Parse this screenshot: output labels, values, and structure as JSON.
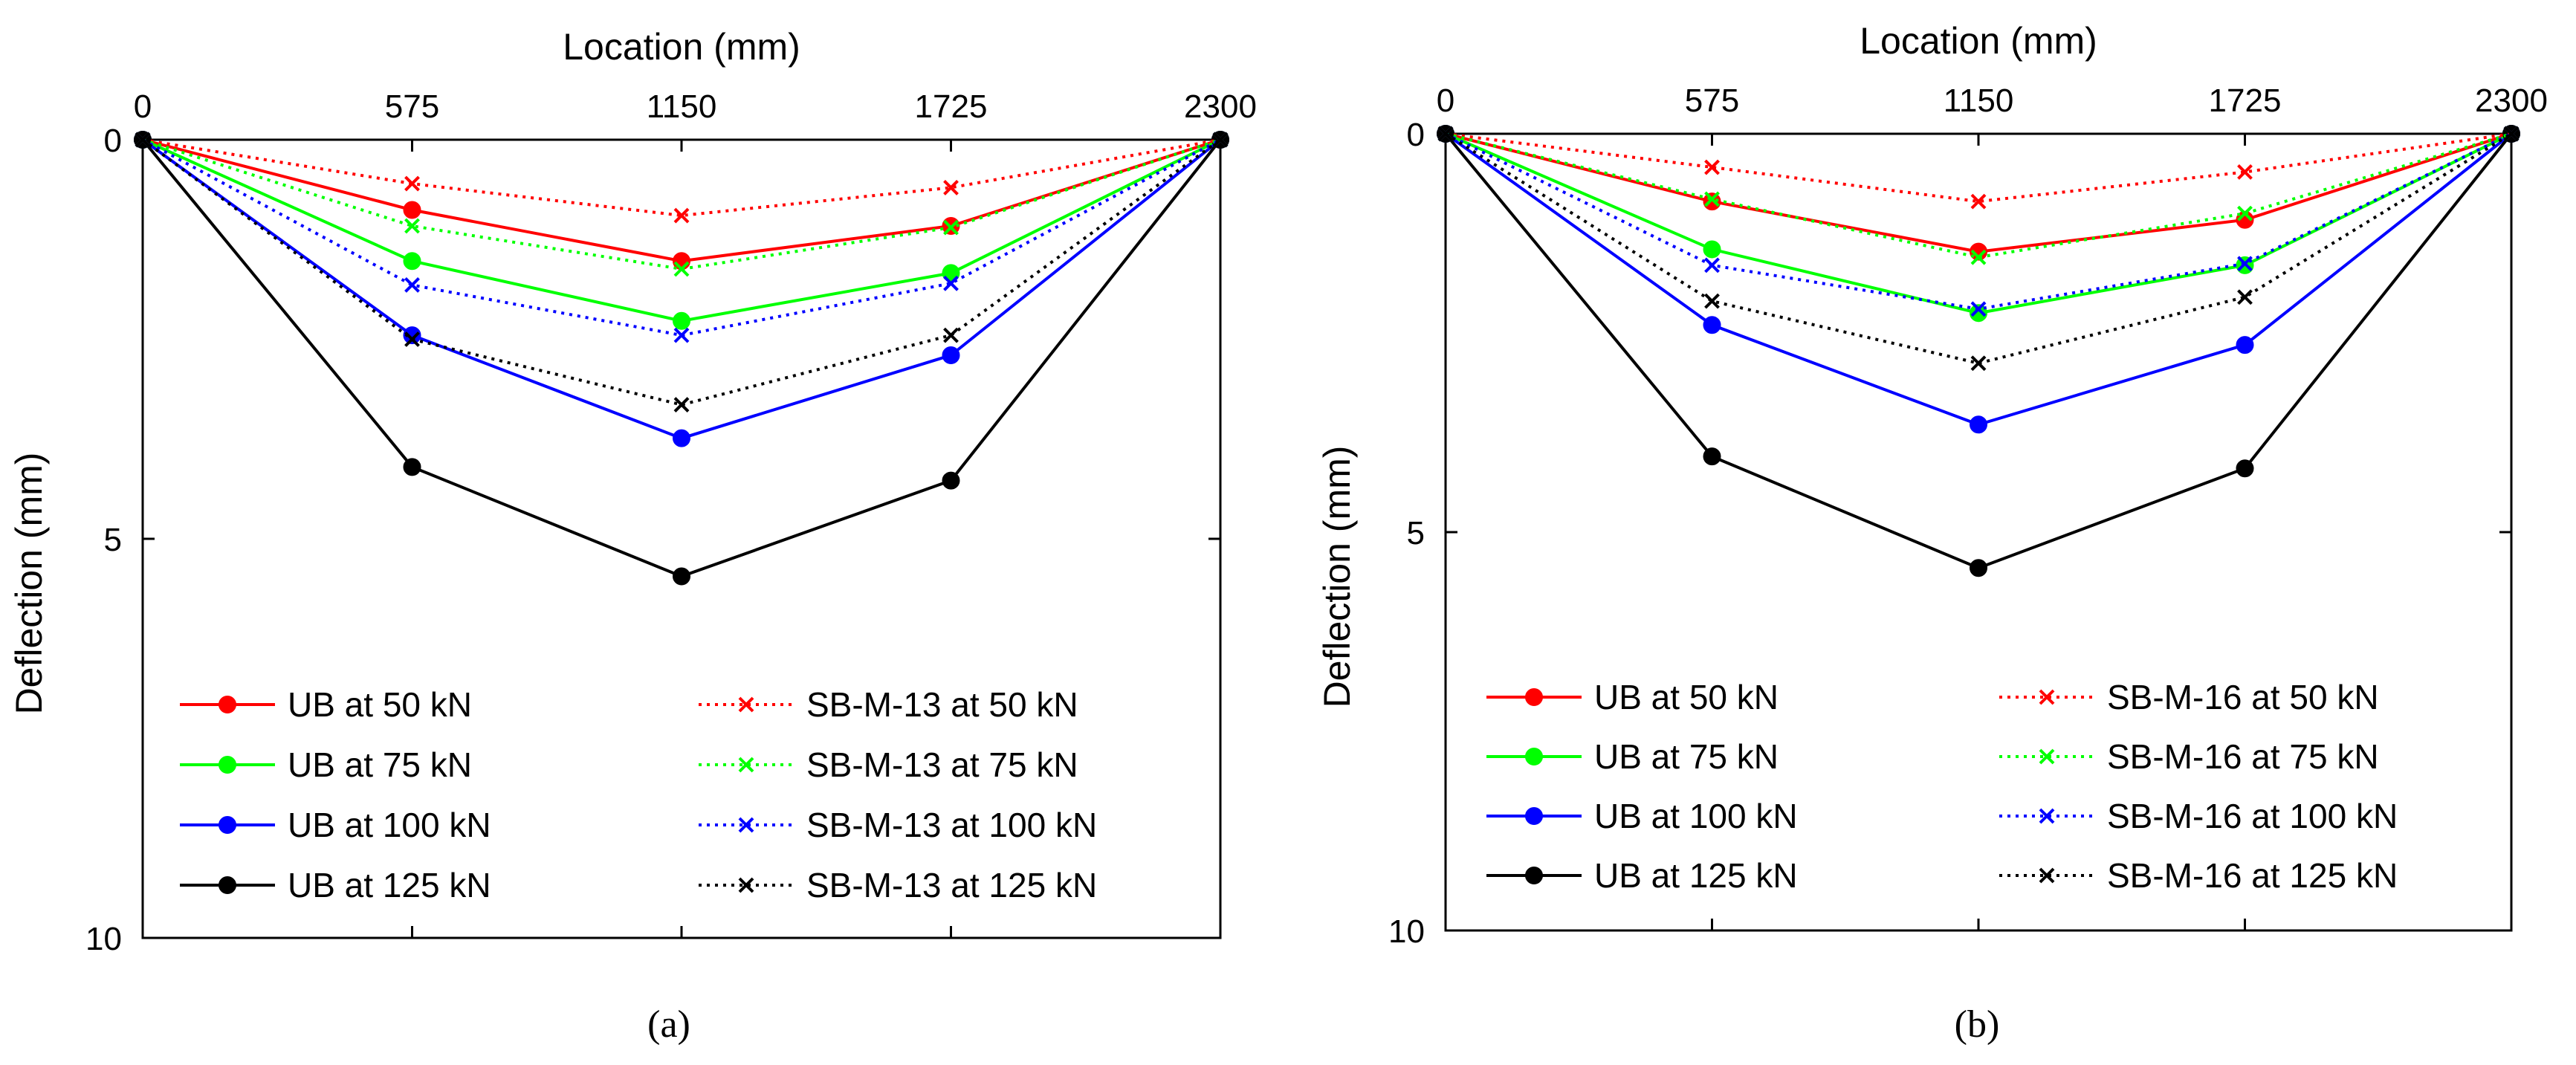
{
  "chart_data": [
    {
      "type": "line",
      "panel_label": "a",
      "title": "",
      "xlabel": "Location (mm)",
      "ylabel": "Deflection (mm)",
      "x_axis_position": "top",
      "y_axis_direction": "reversed",
      "xlim": [
        0,
        2300
      ],
      "ylim": [
        0,
        10
      ],
      "xticks": [
        0,
        575,
        1150,
        1725,
        2300
      ],
      "yticks": [
        0,
        5,
        10
      ],
      "grid": false,
      "legend_position": "bottom",
      "x": [
        0,
        575,
        1150,
        1725,
        2300
      ],
      "series": [
        {
          "name": "UB at 50 kN",
          "color": "#ff0000",
          "style": "solid",
          "marker": "dot",
          "values": [
            0,
            0.88,
            1.52,
            1.08,
            0
          ]
        },
        {
          "name": "UB at 75 kN",
          "color": "#00ff00",
          "style": "solid",
          "marker": "dot",
          "values": [
            0,
            1.52,
            2.27,
            1.67,
            0
          ]
        },
        {
          "name": "UB at 100 kN",
          "color": "#0000ff",
          "style": "solid",
          "marker": "dot",
          "values": [
            0,
            2.45,
            3.74,
            2.7,
            0
          ]
        },
        {
          "name": "UB at 125 kN",
          "color": "#000000",
          "style": "solid",
          "marker": "dot",
          "values": [
            0,
            4.1,
            5.47,
            4.27,
            0
          ]
        },
        {
          "name": "SB-M-13 at 50 kN",
          "color": "#ff0000",
          "style": "dotted",
          "marker": "x",
          "values": [
            0,
            0.55,
            0.95,
            0.6,
            0
          ]
        },
        {
          "name": "SB-M-13 at 75 kN",
          "color": "#00ff00",
          "style": "dotted",
          "marker": "x",
          "values": [
            0,
            1.08,
            1.62,
            1.1,
            0
          ]
        },
        {
          "name": "SB-M-13 at 100 kN",
          "color": "#0000ff",
          "style": "dotted",
          "marker": "x",
          "values": [
            0,
            1.82,
            2.45,
            1.8,
            0
          ]
        },
        {
          "name": "SB-M-13 at 125 kN",
          "color": "#000000",
          "style": "dotted",
          "marker": "x",
          "values": [
            0,
            2.5,
            3.32,
            2.45,
            0
          ]
        }
      ]
    },
    {
      "type": "line",
      "panel_label": "b",
      "title": "",
      "xlabel": "Location (mm)",
      "ylabel": "Deflection (mm)",
      "x_axis_position": "top",
      "y_axis_direction": "reversed",
      "xlim": [
        0,
        2300
      ],
      "ylim": [
        0,
        10
      ],
      "xticks": [
        0,
        575,
        1150,
        1725,
        2300
      ],
      "yticks": [
        0,
        5,
        10
      ],
      "grid": false,
      "legend_position": "bottom",
      "x": [
        0,
        575,
        1150,
        1725,
        2300
      ],
      "series": [
        {
          "name": "UB at 50 kN",
          "color": "#ff0000",
          "style": "solid",
          "marker": "dot",
          "values": [
            0,
            0.85,
            1.48,
            1.08,
            0
          ]
        },
        {
          "name": "UB at 75 kN",
          "color": "#00ff00",
          "style": "solid",
          "marker": "dot",
          "values": [
            0,
            1.45,
            2.25,
            1.65,
            0
          ]
        },
        {
          "name": "UB at 100 kN",
          "color": "#0000ff",
          "style": "solid",
          "marker": "dot",
          "values": [
            0,
            2.4,
            3.65,
            2.65,
            0
          ]
        },
        {
          "name": "UB at 125 kN",
          "color": "#000000",
          "style": "solid",
          "marker": "dot",
          "values": [
            0,
            4.05,
            5.45,
            4.2,
            0
          ]
        },
        {
          "name": "SB-M-16 at 50 kN",
          "color": "#ff0000",
          "style": "dotted",
          "marker": "x",
          "values": [
            0,
            0.42,
            0.85,
            0.48,
            0
          ]
        },
        {
          "name": "SB-M-16 at 75 kN",
          "color": "#00ff00",
          "style": "dotted",
          "marker": "x",
          "values": [
            0,
            0.82,
            1.55,
            1.0,
            0
          ]
        },
        {
          "name": "SB-M-16 at 100 kN",
          "color": "#0000ff",
          "style": "dotted",
          "marker": "x",
          "values": [
            0,
            1.65,
            2.2,
            1.63,
            0
          ]
        },
        {
          "name": "SB-M-16 at 125 kN",
          "color": "#000000",
          "style": "dotted",
          "marker": "x",
          "values": [
            0,
            2.1,
            2.88,
            2.05,
            0
          ]
        }
      ]
    }
  ],
  "captions": [
    "(a)",
    "(b)"
  ]
}
